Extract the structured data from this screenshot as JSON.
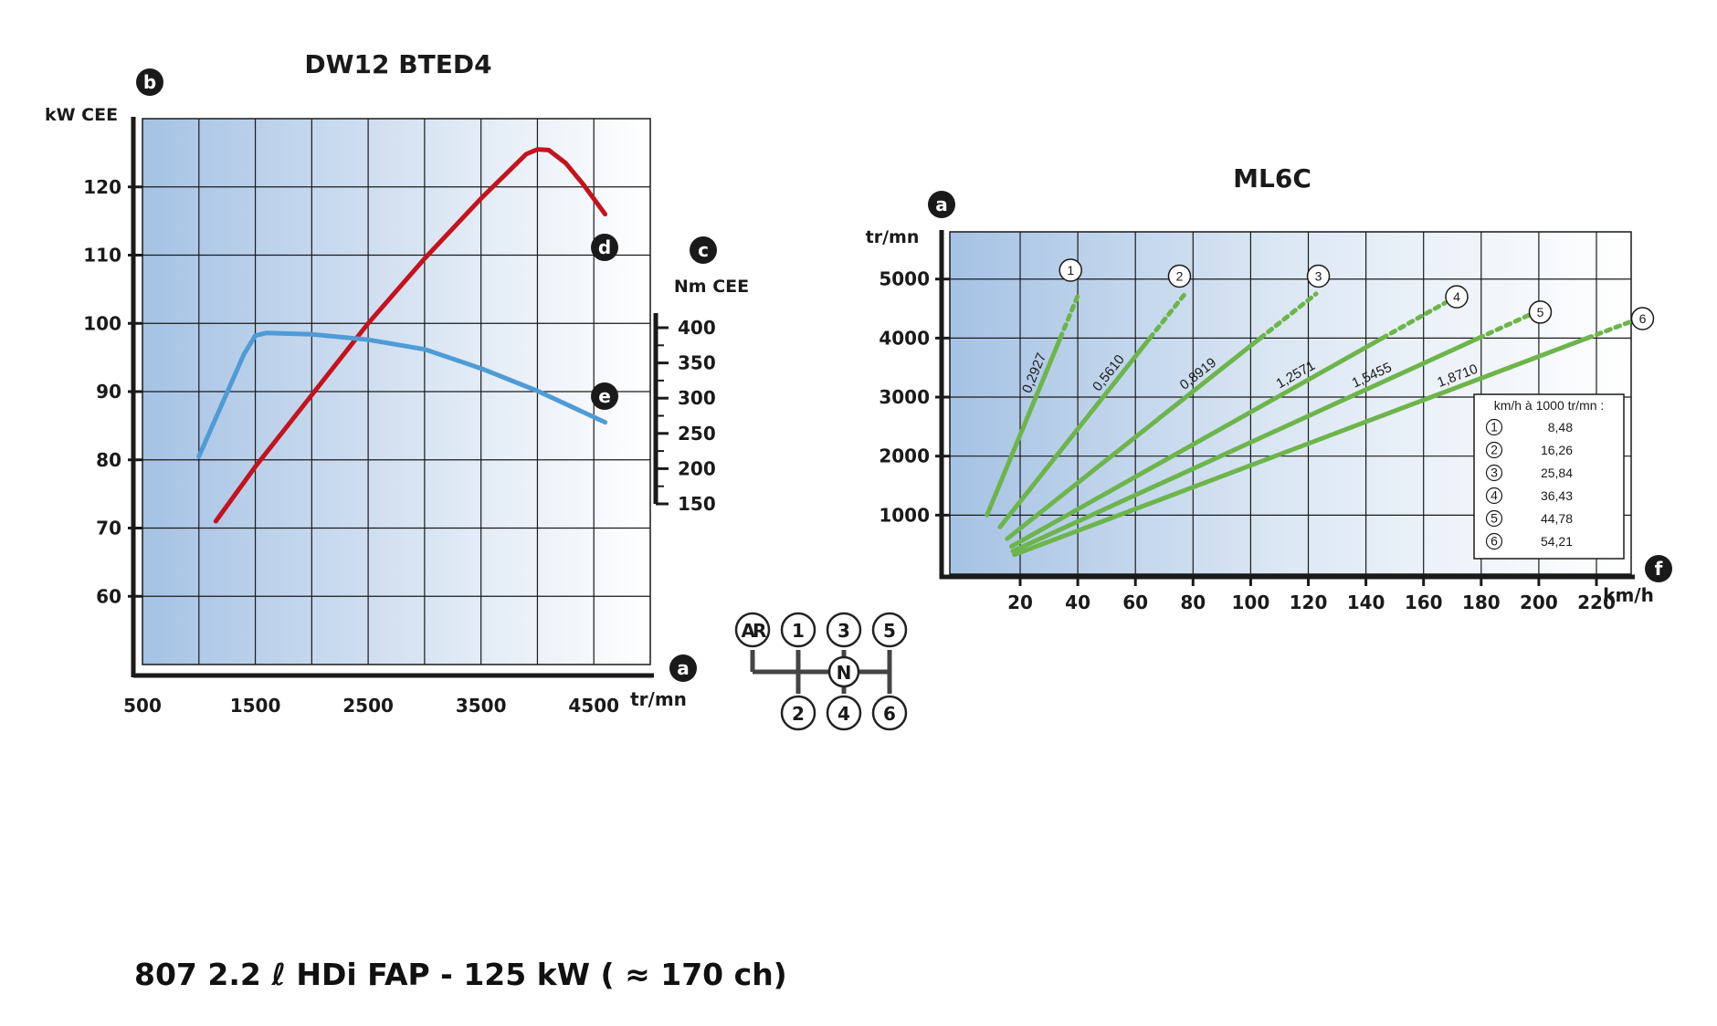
{
  "footer": "807 2.2 ℓ HDi FAP - 125 kW ( ≈ 170 ch)",
  "colors": {
    "power": "#c4131d",
    "torque": "#4f9bd6",
    "gear": "#6db54b",
    "grid": "#1a1a1a",
    "bgLeft": "#aac6e6",
    "bgRight": "#ffffff"
  },
  "chart_data": [
    {
      "type": "line",
      "title": "DW12 BTED4",
      "xlabel": "tr/mn",
      "x_marker": "a",
      "xlim": [
        500,
        5000
      ],
      "x_ticks": [
        500,
        1500,
        2500,
        3500,
        4500
      ],
      "left_axis": {
        "label": "kW CEE",
        "marker": "b",
        "ylim": [
          50,
          130
        ],
        "ticks": [
          60,
          70,
          80,
          90,
          100,
          110,
          120
        ]
      },
      "right_axis": {
        "label": "Nm CEE",
        "marker": "c",
        "ylim": [
          150,
          400
        ],
        "ticks": [
          150,
          200,
          250,
          300,
          350,
          400
        ]
      },
      "grid": true,
      "series": [
        {
          "name": "d",
          "axis": "left",
          "color": "power",
          "x": [
            1150,
            1500,
            2000,
            2500,
            3000,
            3500,
            3900,
            4000,
            4100,
            4250,
            4400,
            4600
          ],
          "y": [
            71,
            79,
            89.5,
            100,
            109.5,
            118.3,
            124.8,
            125.5,
            125.4,
            123.5,
            120.5,
            116
          ]
        },
        {
          "name": "e",
          "axis": "left",
          "color": "torque",
          "x": [
            1000,
            1200,
            1400,
            1500,
            1600,
            2000,
            2500,
            3000,
            3500,
            4000,
            4300,
            4600
          ],
          "y": [
            80.5,
            88,
            95.5,
            98.2,
            98.6,
            98.4,
            97.6,
            96.2,
            93.4,
            90.1,
            87.8,
            85.5
          ]
        }
      ]
    },
    {
      "type": "line",
      "title": "ML6C",
      "xlabel": "km/h",
      "x_marker": "f",
      "xlim": [
        0,
        240
      ],
      "x_ticks": [
        20,
        40,
        60,
        80,
        100,
        120,
        140,
        160,
        180,
        200,
        220
      ],
      "ylabel": "tr/mn",
      "y_marker": "a",
      "ylim": [
        0,
        5800
      ],
      "y_ticks": [
        1000,
        2000,
        3000,
        4000,
        5000
      ],
      "grid": true,
      "series": [
        {
          "name": "1",
          "ratio": "0,2927",
          "x_start": 8.48,
          "rpm_start": 1000,
          "x_solid_end": 33.92,
          "rpm_solid_end": 4000,
          "x_end": 40.28,
          "rpm_end": 4750,
          "label_x": 37.5,
          "label_rpm": 5150
        },
        {
          "name": "2",
          "ratio": "0,5610",
          "x_start": 13.0,
          "rpm_start": 800,
          "x_solid_end": 65.04,
          "rpm_solid_end": 4000,
          "x_end": 77.2,
          "rpm_end": 4750,
          "label_x": 75.3,
          "label_rpm": 5050
        },
        {
          "name": "3",
          "ratio": "0,8919",
          "x_start": 15.5,
          "rpm_start": 600,
          "x_solid_end": 103.36,
          "rpm_solid_end": 4000,
          "x_end": 122.7,
          "rpm_end": 4750,
          "label_x": 123.5,
          "label_rpm": 5050
        },
        {
          "name": "4",
          "ratio": "1,2571",
          "x_start": 17.0,
          "rpm_start": 470,
          "x_solid_end": 145.72,
          "rpm_solid_end": 4000,
          "x_end": 167.4,
          "rpm_end": 4595,
          "label_x": 171.5,
          "label_rpm": 4700
        },
        {
          "name": "5",
          "ratio": "1,5455",
          "x_start": 17.5,
          "rpm_start": 390,
          "x_solid_end": 179.12,
          "rpm_solid_end": 4000,
          "x_end": 199.3,
          "rpm_end": 4450,
          "label_x": 200.5,
          "label_rpm": 4440
        },
        {
          "name": "6",
          "ratio": "1,8710",
          "x_start": 18.0,
          "rpm_start": 330,
          "x_solid_end": 216.84,
          "rpm_solid_end": 4000,
          "x_end": 233.4,
          "rpm_end": 4306,
          "label_x": 236.0,
          "label_rpm": 4330
        }
      ],
      "table": {
        "header": "km/h à 1000 tr/mn :",
        "rows": [
          {
            "gear": "1",
            "value": "8,48"
          },
          {
            "gear": "2",
            "value": "16,26"
          },
          {
            "gear": "3",
            "value": "25,84"
          },
          {
            "gear": "4",
            "value": "36,43"
          },
          {
            "gear": "5",
            "value": "44,78"
          },
          {
            "gear": "6",
            "value": "54,21"
          }
        ]
      }
    }
  ],
  "shift_pattern": {
    "top": [
      "AR",
      "1",
      "3",
      "5"
    ],
    "bottom": [
      "2",
      "4",
      "6"
    ],
    "neutral": "N"
  }
}
